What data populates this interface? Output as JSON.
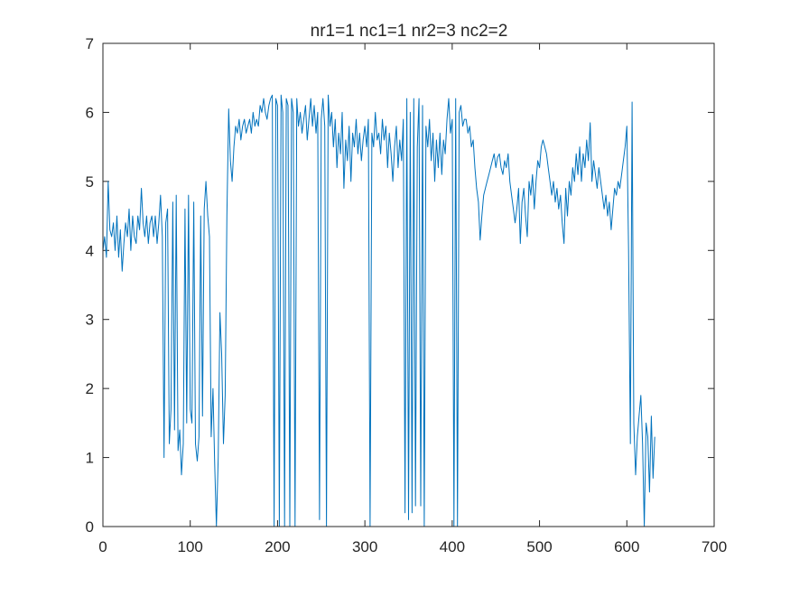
{
  "chart_data": {
    "type": "line",
    "title": "nr1=1 nc1=1 nr2=3 nc2=2",
    "xlabel": "",
    "ylabel": "",
    "xlim": [
      0,
      700
    ],
    "ylim": [
      0,
      7
    ],
    "xticks": [
      0,
      100,
      200,
      300,
      400,
      500,
      600,
      700
    ],
    "yticks": [
      0,
      1,
      2,
      3,
      4,
      5,
      6,
      7
    ],
    "grid": false,
    "line_color": "#0072BD",
    "series": [
      {
        "values": [
          [
            0,
            4.0
          ],
          [
            2,
            4.2
          ],
          [
            4,
            3.9
          ],
          [
            6,
            5.0
          ],
          [
            8,
            4.3
          ],
          [
            10,
            4.2
          ],
          [
            12,
            4.4
          ],
          [
            14,
            4.0
          ],
          [
            16,
            4.5
          ],
          [
            18,
            3.9
          ],
          [
            20,
            4.3
          ],
          [
            22,
            3.7
          ],
          [
            24,
            4.1
          ],
          [
            26,
            4.4
          ],
          [
            28,
            4.2
          ],
          [
            30,
            4.6
          ],
          [
            32,
            4.0
          ],
          [
            34,
            4.5
          ],
          [
            36,
            4.2
          ],
          [
            38,
            4.1
          ],
          [
            40,
            4.5
          ],
          [
            42,
            4.3
          ],
          [
            44,
            4.9
          ],
          [
            46,
            4.4
          ],
          [
            48,
            4.2
          ],
          [
            50,
            4.5
          ],
          [
            52,
            4.1
          ],
          [
            54,
            4.4
          ],
          [
            56,
            4.5
          ],
          [
            58,
            4.2
          ],
          [
            60,
            4.5
          ],
          [
            62,
            4.1
          ],
          [
            64,
            4.4
          ],
          [
            66,
            4.8
          ],
          [
            68,
            4.2
          ],
          [
            70,
            1.0
          ],
          [
            72,
            4.4
          ],
          [
            74,
            4.6
          ],
          [
            76,
            1.2
          ],
          [
            78,
            1.7
          ],
          [
            80,
            4.7
          ],
          [
            82,
            1.4
          ],
          [
            84,
            4.8
          ],
          [
            86,
            1.1
          ],
          [
            88,
            1.4
          ],
          [
            90,
            0.75
          ],
          [
            92,
            1.2
          ],
          [
            94,
            4.6
          ],
          [
            96,
            1.5
          ],
          [
            98,
            4.8
          ],
          [
            100,
            1.7
          ],
          [
            102,
            1.5
          ],
          [
            104,
            4.7
          ],
          [
            106,
            1.2
          ],
          [
            108,
            0.95
          ],
          [
            110,
            1.3
          ],
          [
            112,
            4.5
          ],
          [
            114,
            1.6
          ],
          [
            116,
            4.6
          ],
          [
            118,
            5.0
          ],
          [
            120,
            4.5
          ],
          [
            122,
            4.2
          ],
          [
            124,
            1.3
          ],
          [
            126,
            2.0
          ],
          [
            128,
            0.9
          ],
          [
            130,
            0.0
          ],
          [
            132,
            1.0
          ],
          [
            134,
            3.1
          ],
          [
            136,
            2.5
          ],
          [
            138,
            1.2
          ],
          [
            140,
            1.9
          ],
          [
            142,
            4.5
          ],
          [
            144,
            6.05
          ],
          [
            146,
            5.3
          ],
          [
            148,
            5.0
          ],
          [
            150,
            5.5
          ],
          [
            152,
            5.8
          ],
          [
            154,
            5.7
          ],
          [
            156,
            5.9
          ],
          [
            158,
            5.6
          ],
          [
            160,
            5.8
          ],
          [
            162,
            5.9
          ],
          [
            164,
            5.7
          ],
          [
            166,
            5.8
          ],
          [
            168,
            5.9
          ],
          [
            170,
            5.7
          ],
          [
            172,
            6.0
          ],
          [
            174,
            5.8
          ],
          [
            176,
            5.9
          ],
          [
            178,
            5.8
          ],
          [
            180,
            6.1
          ],
          [
            182,
            6.0
          ],
          [
            184,
            6.2
          ],
          [
            186,
            6.0
          ],
          [
            188,
            5.9
          ],
          [
            190,
            6.1
          ],
          [
            192,
            6.2
          ],
          [
            194,
            6.25
          ],
          [
            196,
            0.0
          ],
          [
            198,
            6.2
          ],
          [
            200,
            6.1
          ],
          [
            202,
            0.0
          ],
          [
            204,
            6.25
          ],
          [
            206,
            6.0
          ],
          [
            208,
            0.0
          ],
          [
            210,
            6.2
          ],
          [
            212,
            6.1
          ],
          [
            214,
            0.0
          ],
          [
            216,
            6.2
          ],
          [
            218,
            6.0
          ],
          [
            220,
            0.0
          ],
          [
            222,
            6.2
          ],
          [
            224,
            5.8
          ],
          [
            226,
            6.0
          ],
          [
            228,
            5.7
          ],
          [
            230,
            5.9
          ],
          [
            232,
            6.1
          ],
          [
            234,
            5.6
          ],
          [
            236,
            5.9
          ],
          [
            238,
            6.2
          ],
          [
            240,
            5.8
          ],
          [
            242,
            6.1
          ],
          [
            244,
            5.7
          ],
          [
            246,
            6.0
          ],
          [
            248,
            0.1
          ],
          [
            250,
            5.9
          ],
          [
            252,
            6.2
          ],
          [
            254,
            5.8
          ],
          [
            256,
            0.0
          ],
          [
            258,
            6.25
          ],
          [
            260,
            5.8
          ],
          [
            262,
            6.0
          ],
          [
            264,
            5.5
          ],
          [
            266,
            5.9
          ],
          [
            268,
            5.2
          ],
          [
            270,
            5.7
          ],
          [
            272,
            5.4
          ],
          [
            274,
            6.0
          ],
          [
            276,
            4.9
          ],
          [
            278,
            5.6
          ],
          [
            280,
            5.3
          ],
          [
            282,
            5.8
          ],
          [
            284,
            5.0
          ],
          [
            286,
            5.7
          ],
          [
            288,
            5.5
          ],
          [
            290,
            5.9
          ],
          [
            292,
            5.4
          ],
          [
            294,
            5.7
          ],
          [
            296,
            5.3
          ],
          [
            298,
            5.6
          ],
          [
            300,
            5.8
          ],
          [
            302,
            5.5
          ],
          [
            304,
            5.9
          ],
          [
            306,
            0.0
          ],
          [
            308,
            5.7
          ],
          [
            310,
            5.5
          ],
          [
            312,
            6.0
          ],
          [
            314,
            5.6
          ],
          [
            316,
            5.7
          ],
          [
            318,
            5.4
          ],
          [
            320,
            5.9
          ],
          [
            322,
            5.6
          ],
          [
            324,
            5.8
          ],
          [
            326,
            5.2
          ],
          [
            328,
            5.7
          ],
          [
            330,
            5.4
          ],
          [
            332,
            5.0
          ],
          [
            334,
            5.5
          ],
          [
            336,
            5.8
          ],
          [
            338,
            5.2
          ],
          [
            340,
            5.6
          ],
          [
            342,
            5.3
          ],
          [
            344,
            5.9
          ],
          [
            346,
            0.2
          ],
          [
            348,
            6.2
          ],
          [
            350,
            0.1
          ],
          [
            352,
            6.0
          ],
          [
            354,
            0.2
          ],
          [
            356,
            6.2
          ],
          [
            358,
            0.3
          ],
          [
            360,
            5.5
          ],
          [
            362,
            6.2
          ],
          [
            364,
            0.3
          ],
          [
            366,
            6.1
          ],
          [
            368,
            0.0
          ],
          [
            370,
            5.8
          ],
          [
            372,
            5.5
          ],
          [
            374,
            5.9
          ],
          [
            376,
            5.3
          ],
          [
            378,
            5.7
          ],
          [
            380,
            5.0
          ],
          [
            382,
            5.6
          ],
          [
            384,
            5.2
          ],
          [
            386,
            5.7
          ],
          [
            388,
            5.1
          ],
          [
            390,
            5.6
          ],
          [
            392,
            5.4
          ],
          [
            394,
            5.9
          ],
          [
            396,
            6.2
          ],
          [
            398,
            5.7
          ],
          [
            400,
            5.9
          ],
          [
            402,
            0.0
          ],
          [
            404,
            6.2
          ],
          [
            406,
            0.0
          ],
          [
            408,
            6.0
          ],
          [
            410,
            6.1
          ],
          [
            412,
            5.8
          ],
          [
            414,
            5.9
          ],
          [
            416,
            5.9
          ],
          [
            418,
            5.7
          ],
          [
            420,
            5.8
          ],
          [
            422,
            5.5
          ],
          [
            424,
            5.6
          ],
          [
            426,
            5.2
          ],
          [
            428,
            4.9
          ],
          [
            430,
            4.7
          ],
          [
            432,
            4.15
          ],
          [
            434,
            4.5
          ],
          [
            436,
            4.8
          ],
          [
            438,
            4.9
          ],
          [
            440,
            5.0
          ],
          [
            442,
            5.1
          ],
          [
            444,
            5.2
          ],
          [
            446,
            5.3
          ],
          [
            448,
            5.4
          ],
          [
            450,
            5.2
          ],
          [
            452,
            5.35
          ],
          [
            454,
            5.4
          ],
          [
            456,
            5.2
          ],
          [
            458,
            5.1
          ],
          [
            460,
            5.3
          ],
          [
            462,
            5.2
          ],
          [
            464,
            5.4
          ],
          [
            466,
            5.0
          ],
          [
            468,
            4.8
          ],
          [
            470,
            4.6
          ],
          [
            472,
            4.4
          ],
          [
            474,
            4.6
          ],
          [
            476,
            4.9
          ],
          [
            478,
            4.1
          ],
          [
            480,
            4.7
          ],
          [
            482,
            4.9
          ],
          [
            484,
            4.5
          ],
          [
            486,
            4.2
          ],
          [
            488,
            5.0
          ],
          [
            490,
            4.8
          ],
          [
            492,
            5.1
          ],
          [
            494,
            4.6
          ],
          [
            496,
            5.0
          ],
          [
            498,
            5.3
          ],
          [
            500,
            5.2
          ],
          [
            502,
            5.5
          ],
          [
            504,
            5.6
          ],
          [
            506,
            5.5
          ],
          [
            508,
            5.4
          ],
          [
            510,
            5.2
          ],
          [
            512,
            5.0
          ],
          [
            514,
            4.8
          ],
          [
            516,
            5.0
          ],
          [
            518,
            4.7
          ],
          [
            520,
            4.9
          ],
          [
            522,
            4.6
          ],
          [
            524,
            4.8
          ],
          [
            526,
            4.4
          ],
          [
            528,
            4.1
          ],
          [
            530,
            4.9
          ],
          [
            532,
            4.5
          ],
          [
            534,
            5.0
          ],
          [
            536,
            4.8
          ],
          [
            538,
            5.2
          ],
          [
            540,
            5.0
          ],
          [
            542,
            5.4
          ],
          [
            544,
            5.1
          ],
          [
            546,
            5.5
          ],
          [
            548,
            5.0
          ],
          [
            550,
            5.4
          ],
          [
            552,
            5.2
          ],
          [
            554,
            5.6
          ],
          [
            556,
            5.3
          ],
          [
            558,
            5.85
          ],
          [
            560,
            5.0
          ],
          [
            562,
            5.3
          ],
          [
            564,
            5.1
          ],
          [
            566,
            4.9
          ],
          [
            568,
            5.2
          ],
          [
            570,
            5.0
          ],
          [
            572,
            4.8
          ],
          [
            574,
            4.6
          ],
          [
            576,
            4.8
          ],
          [
            578,
            4.5
          ],
          [
            580,
            4.7
          ],
          [
            582,
            4.3
          ],
          [
            584,
            4.6
          ],
          [
            586,
            4.9
          ],
          [
            588,
            4.8
          ],
          [
            590,
            5.0
          ],
          [
            592,
            4.9
          ],
          [
            594,
            5.1
          ],
          [
            596,
            5.3
          ],
          [
            598,
            5.5
          ],
          [
            600,
            5.8
          ],
          [
            602,
            4.0
          ],
          [
            604,
            1.2
          ],
          [
            606,
            6.15
          ],
          [
            608,
            1.5
          ],
          [
            610,
            0.75
          ],
          [
            612,
            1.3
          ],
          [
            614,
            1.6
          ],
          [
            616,
            1.9
          ],
          [
            618,
            1.2
          ],
          [
            620,
            0.0
          ],
          [
            622,
            1.5
          ],
          [
            624,
            1.3
          ],
          [
            626,
            0.5
          ],
          [
            628,
            1.6
          ],
          [
            630,
            0.7
          ],
          [
            632,
            1.3
          ]
        ]
      }
    ]
  }
}
